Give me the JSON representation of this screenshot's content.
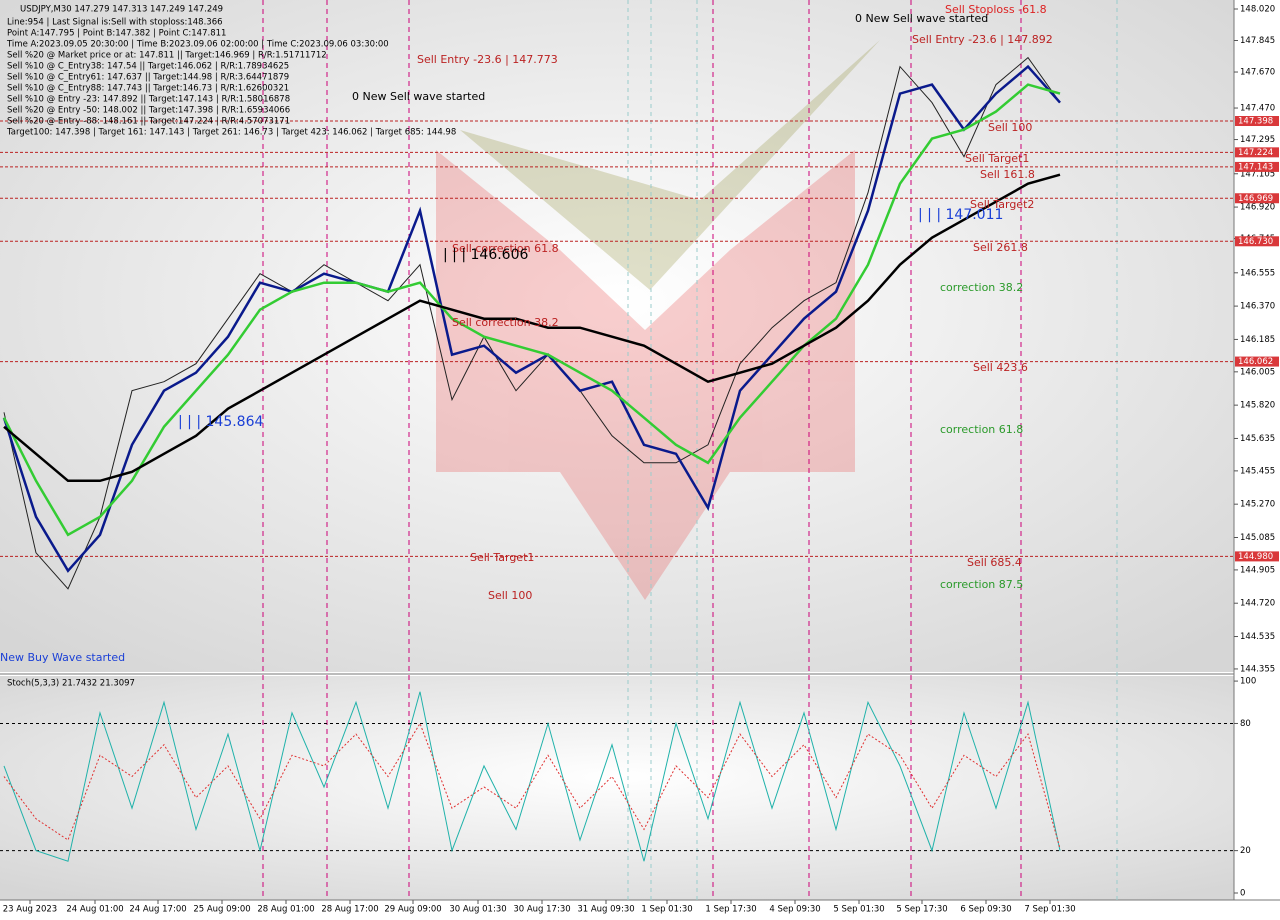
{
  "chart_data": [
    {
      "type": "line",
      "title": "USDJPY,M30  147.279 147.313 147.249 147.249",
      "info": [
        "Line:954 | Last Signal is:Sell with stoploss:148.366",
        "Point A:147.795 | Point B:147.382 | Point C:147.811",
        "Time A:2023.09.05 20:30:00 | Time B:2023.09.06 02:00:00 | Time C:2023.09.06 03:30:00",
        "Sell %20 @ Market price or at: 147.811 || Target:146.969 | R/R:1.51711712",
        "Sell %10 @ C_Entry38: 147.54 || Target:146.062 | R/R:1.78934625",
        "Sell %10 @ C_Entry61: 147.637 || Target:144.98 | R/R:3.64471879",
        "Sell %10 @ C_Entry88: 147.743 || Target:146.73 | R/R:1.62600321",
        "Sell %10 @ Entry -23: 147.892 || Target:147.143 | R/R:1.58016878",
        "Sell %20 @ Entry -50: 148.002 || Target:147.398 | R/R:1.65934066",
        "Sell %20 @ Entry -88: 148.161 || Target:147.224 | R/R:4.57073171",
        "Target100: 147.398 | Target 161: 147.143 | Target 261: 146.73 | Target 423: 146.062 | Target 685: 144.98"
      ],
      "x": [
        0,
        1,
        2,
        3,
        4,
        5,
        6,
        7,
        8,
        9,
        10,
        11,
        12,
        13,
        14,
        15,
        16,
        17,
        18,
        19,
        20,
        21,
        22,
        23,
        24,
        25,
        26,
        27,
        28,
        29,
        30,
        31,
        32,
        33
      ],
      "xlim": [
        -0.125,
        38.4375
      ],
      "xticks": [
        {
          "value": 0.8125,
          "label": "23 Aug 2023"
        },
        {
          "value": 2.84375,
          "label": "24 Aug 01:00"
        },
        {
          "value": 4.8125,
          "label": "24 Aug 17:00"
        },
        {
          "value": 6.8125,
          "label": "25 Aug 09:00"
        },
        {
          "value": 8.8125,
          "label": "28 Aug 01:00"
        },
        {
          "value": 10.8125,
          "label": "28 Aug 17:00"
        },
        {
          "value": 12.78125,
          "label": "29 Aug 09:00"
        },
        {
          "value": 14.8125,
          "label": "30 Aug 01:30"
        },
        {
          "value": 16.8125,
          "label": "30 Aug 17:30"
        },
        {
          "value": 18.8125,
          "label": "31 Aug 09:30"
        },
        {
          "value": 20.71875,
          "label": "1 Sep 01:30"
        },
        {
          "value": 22.71875,
          "label": "1 Sep 17:30"
        },
        {
          "value": 24.71875,
          "label": "4 Sep 09:30"
        },
        {
          "value": 26.71875,
          "label": "5 Sep 01:30"
        },
        {
          "value": 28.6875,
          "label": "5 Sep 17:30"
        },
        {
          "value": 30.6875,
          "label": "6 Sep 09:30"
        },
        {
          "value": 32.6875,
          "label": "7 Sep 01:30"
        }
      ],
      "ylim": [
        144.338,
        148.07
      ],
      "yticks": [
        {
          "value": 148.02,
          "label": "148.020"
        },
        147.845,
        {
          "value": 147.67,
          "label": "147.670"
        },
        {
          "value": 147.47,
          "label": "147.470"
        },
        147.295,
        147.105,
        {
          "value": 146.92,
          "label": "146.920"
        },
        146.745,
        146.555,
        {
          "value": 146.37,
          "label": "146.370"
        },
        146.185,
        146.005,
        {
          "value": 145.82,
          "label": "145.820"
        },
        145.635,
        145.455,
        {
          "value": 145.27,
          "label": "145.270"
        },
        145.085,
        144.905,
        {
          "value": 144.72,
          "label": "144.720"
        },
        144.535,
        144.355
      ],
      "levels": [
        147.398,
        147.224,
        147.143,
        146.969,
        {
          "value": 146.73,
          "label": "146.730"
        },
        146.062,
        {
          "value": 144.98,
          "label": "144.980"
        }
      ],
      "series": [
        {
          "name": "Price",
          "color": "#222222",
          "values": [
            145.78,
            145.0,
            144.8,
            145.2,
            145.9,
            145.95,
            146.05,
            146.3,
            146.55,
            146.45,
            146.6,
            146.5,
            146.4,
            146.6,
            145.85,
            146.2,
            145.9,
            146.1,
            145.9,
            145.65,
            145.5,
            145.5,
            145.6,
            146.05,
            146.25,
            146.4,
            146.5,
            147.0,
            147.7,
            147.5,
            147.2,
            147.6,
            147.75,
            147.5
          ]
        },
        {
          "name": "MA fast",
          "color": "#0a1a8c",
          "values": [
            145.75,
            145.2,
            144.9,
            145.1,
            145.6,
            145.9,
            146.0,
            146.2,
            146.5,
            146.45,
            146.55,
            146.5,
            146.45,
            146.9,
            146.1,
            146.15,
            146.0,
            146.1,
            145.9,
            145.95,
            145.6,
            145.55,
            145.25,
            145.9,
            146.1,
            146.3,
            146.45,
            146.9,
            147.55,
            147.6,
            147.35,
            147.55,
            147.7,
            147.5
          ]
        },
        {
          "name": "MA medium",
          "color": "#33cc33",
          "values": [
            145.75,
            145.4,
            145.1,
            145.2,
            145.4,
            145.7,
            145.9,
            146.1,
            146.35,
            146.45,
            146.5,
            146.5,
            146.45,
            146.5,
            146.3,
            146.2,
            146.15,
            146.1,
            146.0,
            145.9,
            145.75,
            145.6,
            145.5,
            145.75,
            145.95,
            146.15,
            146.3,
            146.6,
            147.05,
            147.3,
            147.35,
            147.45,
            147.6,
            147.55
          ]
        },
        {
          "name": "MA slow",
          "color": "#000000",
          "values": [
            145.7,
            145.55,
            145.4,
            145.4,
            145.45,
            145.55,
            145.65,
            145.8,
            145.9,
            146.0,
            146.1,
            146.2,
            146.3,
            146.4,
            146.35,
            146.3,
            146.3,
            146.25,
            146.25,
            146.2,
            146.15,
            146.05,
            145.95,
            146.0,
            146.05,
            146.15,
            146.25,
            146.4,
            146.6,
            146.75,
            146.85,
            146.95,
            147.05,
            147.1
          ]
        }
      ],
      "annotations": [
        "Sell Entry -23.6 | 147.773",
        "0 New Sell wave started",
        "Sell correction 61.8",
        "| | | 146.606",
        "Sell correction 38.2",
        "Sell Target1",
        "Sell 100",
        "| | | 145.864",
        "New Buy Wave started",
        "0 New Sell wave started",
        "Sell Stoploss -61.8",
        "Sell Entry -23.6 | 147.892",
        "Sell 100",
        "Sell Target1",
        "Sell 161.8",
        "Sell Target2",
        "| | | 147.011",
        "Sell 261.8",
        "correction 38.2",
        "Sell 423.6",
        "correction 61.8",
        "Sell 685.4",
        "correction 87.5"
      ]
    },
    {
      "type": "line",
      "title": "Stoch(5,3,3) 21.7432 21.3097",
      "x": [
        0,
        1,
        2,
        3,
        4,
        5,
        6,
        7,
        8,
        9,
        10,
        11,
        12,
        13,
        14,
        15,
        16,
        17,
        18,
        19,
        20,
        21,
        22,
        23,
        24,
        25,
        26,
        27,
        28,
        29,
        30,
        31,
        32,
        33
      ],
      "xlim": [
        -0.125,
        38.4375
      ],
      "ylim": [
        -3.3,
        102.4
      ],
      "yticks": [
        100,
        80,
        20,
        0
      ],
      "series": [
        {
          "name": "Main",
          "color": "#20b2aa",
          "values": [
            60,
            20,
            15,
            85,
            40,
            90,
            30,
            75,
            20,
            85,
            50,
            90,
            40,
            95,
            20,
            60,
            30,
            80,
            25,
            70,
            15,
            80,
            35,
            90,
            40,
            85,
            30,
            90,
            60,
            20,
            85,
            40,
            90,
            20
          ]
        },
        {
          "name": "Signal",
          "color": "#e03030",
          "values": [
            55,
            35,
            25,
            65,
            55,
            70,
            45,
            60,
            35,
            65,
            60,
            75,
            55,
            80,
            40,
            50,
            40,
            65,
            40,
            55,
            30,
            60,
            45,
            75,
            55,
            70,
            45,
            75,
            65,
            40,
            65,
            55,
            75,
            21
          ]
        }
      ]
    }
  ]
}
